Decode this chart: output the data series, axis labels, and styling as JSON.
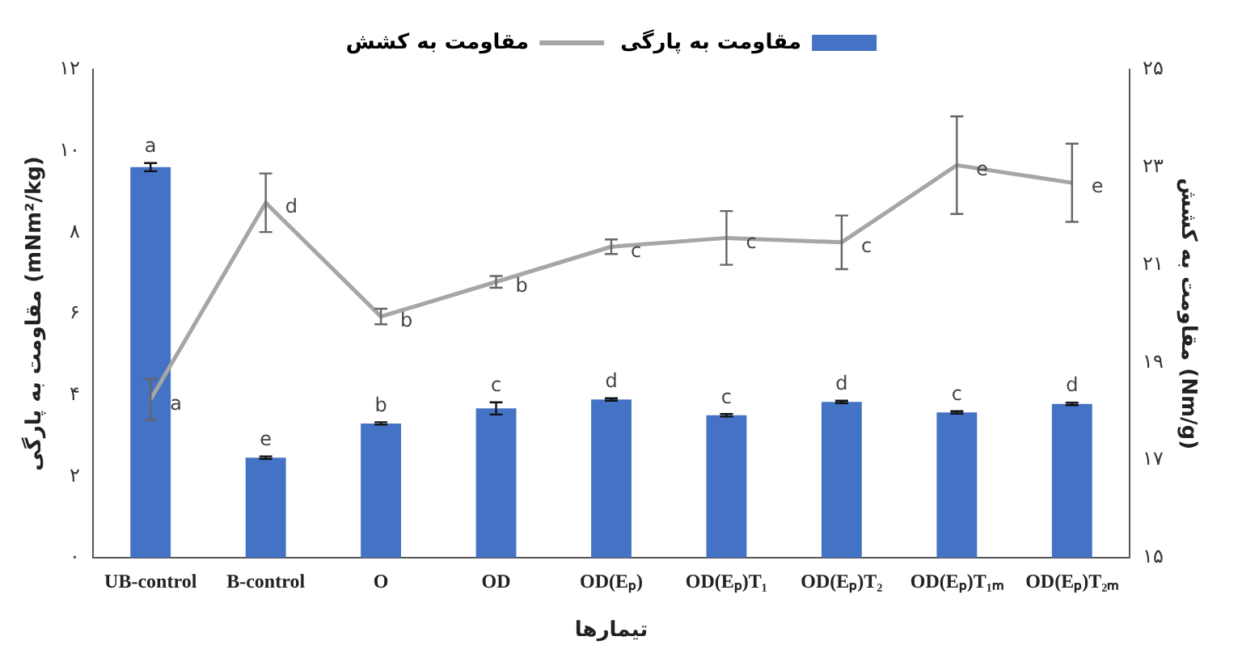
{
  "chart_data": {
    "type": "bar",
    "xlabel": "تیمارها",
    "ylabel": "مقاومت به پارگی (mNm²/kg)",
    "y2label": "مقاومت به کشش (Nm/g)",
    "categories": [
      "UB-control",
      "B-control",
      "O",
      "OD",
      "OD(Eₚ)",
      "OD(Eₚ)T₁",
      "OD(Eₚ)T₂",
      "OD(Eₚ)T₁ₘ",
      "OD(Eₚ)T₂ₘ"
    ],
    "series": [
      {
        "name": "مقاومت به پارگی",
        "color": "#4472c4",
        "values": [
          9.6,
          2.46,
          3.3,
          3.67,
          3.89,
          3.5,
          3.83,
          3.57,
          3.78
        ],
        "errors": [
          0.1,
          0.03,
          0.03,
          0.15,
          0.03,
          0.03,
          0.03,
          0.03,
          0.03
        ],
        "value_labels": [
          "a",
          "e",
          "b",
          "c",
          "d",
          "c",
          "d",
          "c",
          "d"
        ]
      },
      {
        "name": "مقاومت به کشش",
        "type": "line",
        "axis": "y2",
        "color": "#a6a6a6",
        "values": [
          18.24,
          22.27,
          19.94,
          20.65,
          21.37,
          21.55,
          21.46,
          23.04,
          22.68
        ],
        "errors": [
          0.42,
          0.6,
          0.16,
          0.12,
          0.15,
          0.55,
          0.55,
          1.0,
          0.8
        ],
        "value_labels": [
          "a",
          "d",
          "b",
          "b",
          "c",
          "c",
          "c",
          "e",
          "e"
        ]
      }
    ],
    "ylim": [
      0,
      12
    ],
    "yticks": [
      {
        "value": 0,
        "label": "۰"
      },
      {
        "value": 2,
        "label": "۲"
      },
      {
        "value": 4,
        "label": "۴"
      },
      {
        "value": 6,
        "label": "۶"
      },
      {
        "value": 8,
        "label": "۸"
      },
      {
        "value": 10,
        "label": "۱۰"
      },
      {
        "value": 12,
        "label": "۱۲"
      }
    ],
    "y2lim": [
      15,
      25
    ],
    "y2ticks": [
      {
        "value": 15,
        "label": "۱۵"
      },
      {
        "value": 17,
        "label": "۱۷"
      },
      {
        "value": 19,
        "label": "۱۹"
      },
      {
        "value": 21,
        "label": "۲۱"
      },
      {
        "value": 23,
        "label": "۲۳"
      },
      {
        "value": 25,
        "label": "۲۵"
      }
    ],
    "grid": false,
    "legend": "top",
    "marker": "none",
    "line_style": "solid"
  }
}
